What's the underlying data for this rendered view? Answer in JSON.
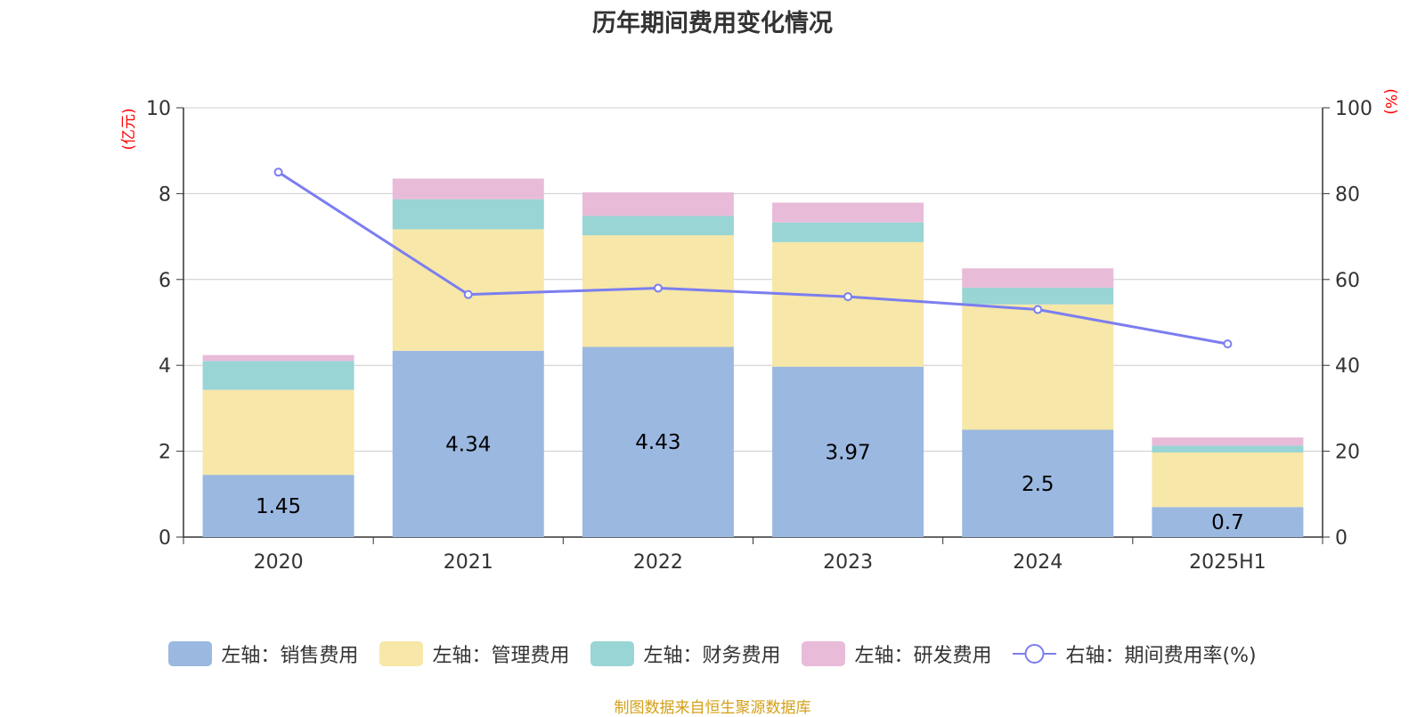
{
  "chart_data": {
    "type": "bar",
    "title": "历年期间费用变化情况",
    "categories": [
      "2020",
      "2021",
      "2022",
      "2023",
      "2024",
      "2025H1"
    ],
    "y_left": {
      "unit": "(亿元)",
      "ylim": [
        0,
        10
      ],
      "ticks": [
        "0",
        "2",
        "4",
        "6",
        "8",
        "10"
      ]
    },
    "y_right": {
      "unit": "(%)",
      "ylim": [
        0,
        100
      ],
      "ticks": [
        "0",
        "20",
        "40",
        "60",
        "80",
        "100"
      ]
    },
    "series": [
      {
        "name": "左轴：销售费用",
        "type": "bar",
        "axis": "left",
        "color": "#9bb8e1",
        "values": [
          1.45,
          4.34,
          4.43,
          3.97,
          2.5,
          0.7
        ],
        "labels": [
          "1.45",
          "4.34",
          "4.43",
          "3.97",
          "2.5",
          "0.7"
        ]
      },
      {
        "name": "左轴：管理费用",
        "type": "bar",
        "axis": "left",
        "color": "#f7e7a8",
        "values": [
          1.98,
          2.83,
          2.6,
          2.9,
          2.92,
          1.27
        ]
      },
      {
        "name": "左轴：财务费用",
        "type": "bar",
        "axis": "left",
        "color": "#98d5d4",
        "values": [
          0.67,
          0.7,
          0.45,
          0.46,
          0.39,
          0.16
        ]
      },
      {
        "name": "左轴：研发费用",
        "type": "bar",
        "axis": "left",
        "color": "#e8bbd9",
        "values": [
          0.14,
          0.48,
          0.55,
          0.46,
          0.45,
          0.19
        ]
      },
      {
        "name": "右轴：期间费用率(%)",
        "type": "line",
        "axis": "right",
        "color": "#7b7ef0",
        "values": [
          85,
          56.5,
          58,
          56,
          53,
          45
        ]
      }
    ],
    "grid": true,
    "legend_position": "bottom"
  },
  "source_note": "制图数据来自恒生聚源数据库"
}
